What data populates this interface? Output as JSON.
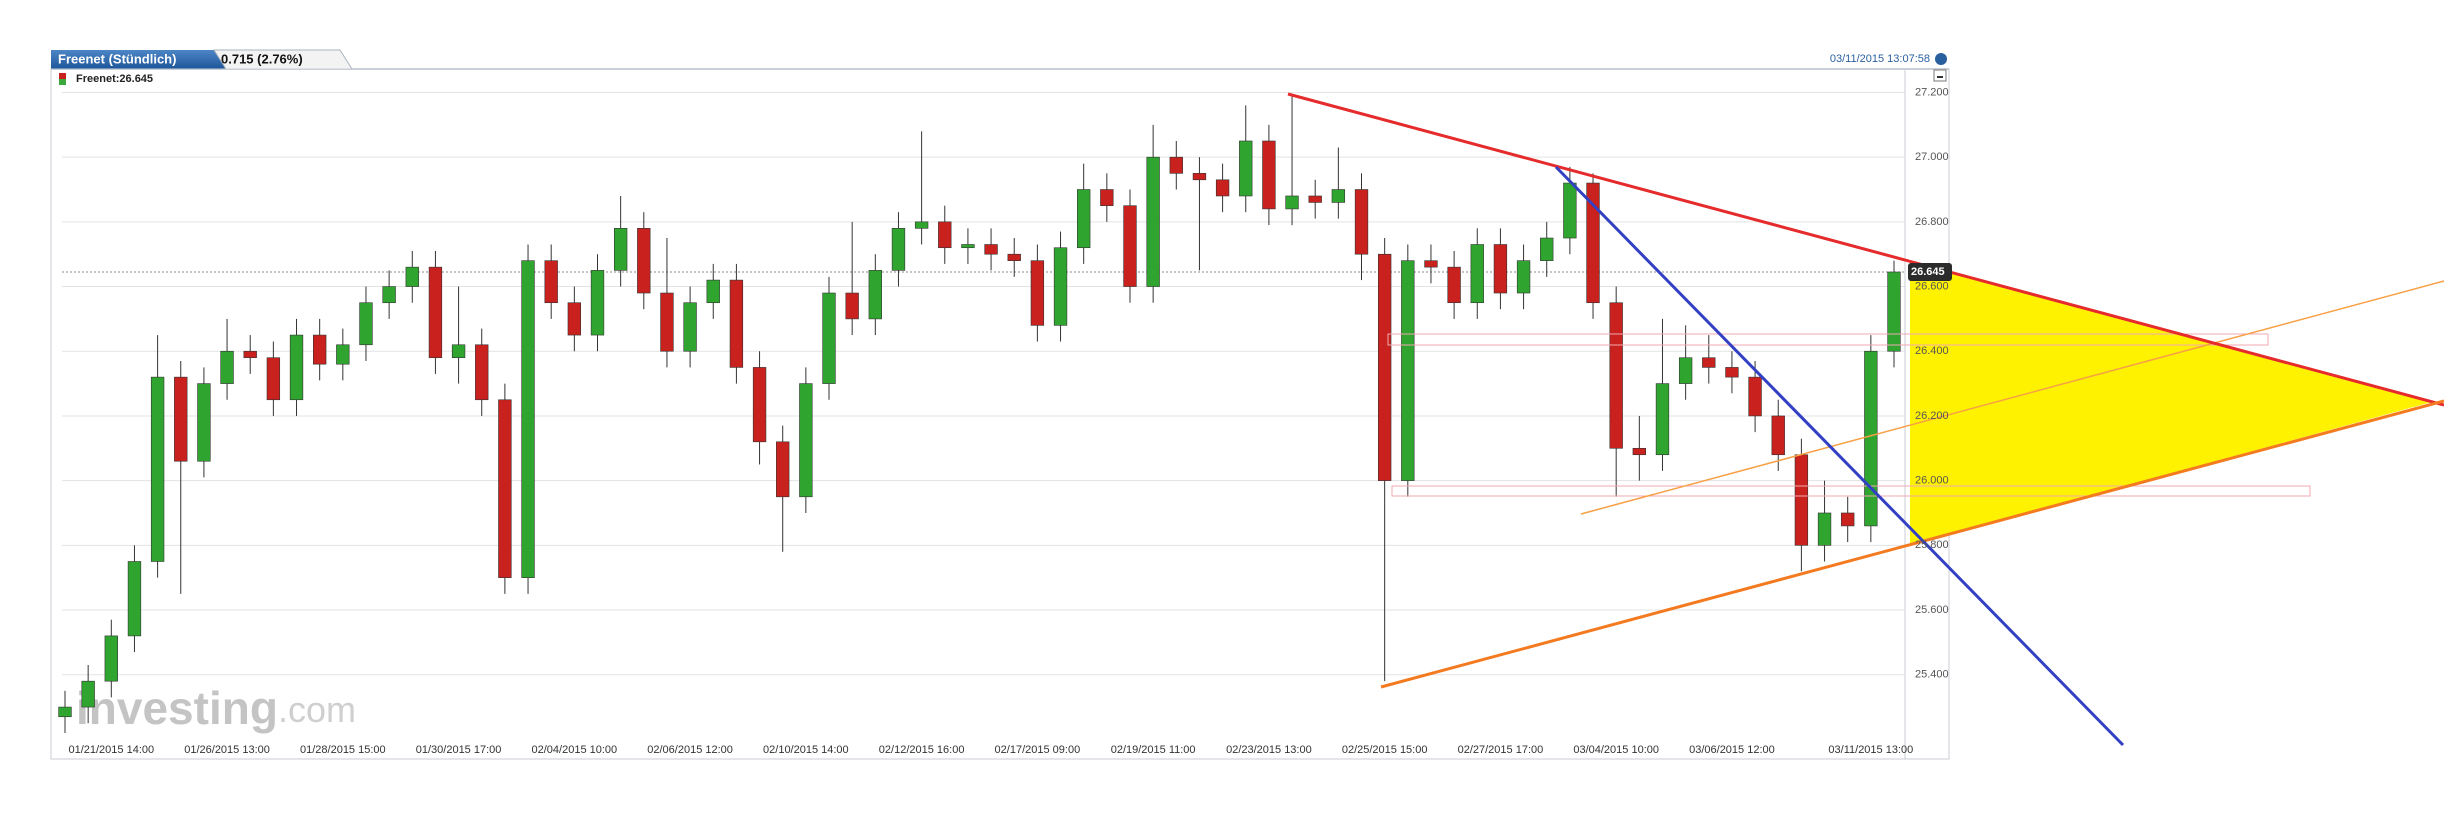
{
  "chart_data": {
    "type": "candlestick",
    "title": "Freenet (Stündlich)",
    "change": "0.715 (2.76%)",
    "timestamp": "03/11/2015 13:07:58",
    "legend": "Freenet:26.645",
    "last_price": 26.645,
    "last_price_label": "26.645",
    "watermark": [
      "investing",
      ".com"
    ],
    "up_color": "#2fa52f",
    "down_color": "#c8211e",
    "ylim": [
      25.26,
      27.22
    ],
    "yticks": [
      {
        "value": 25.4,
        "label": "25.400"
      },
      {
        "value": 25.6,
        "label": "25.600"
      },
      {
        "value": 25.8,
        "label": "25.800"
      },
      {
        "value": 26.0,
        "label": "26.000"
      },
      {
        "value": 26.2,
        "label": "26.200"
      },
      {
        "value": 26.4,
        "label": "26.400"
      },
      {
        "value": 26.6,
        "label": "26.600"
      },
      {
        "value": 26.8,
        "label": "26.800"
      },
      {
        "value": 27.0,
        "label": "27.000"
      },
      {
        "value": 27.2,
        "label": "27.200"
      }
    ],
    "grid": true,
    "categories": [
      null,
      null,
      "01/21/2015 14:00",
      null,
      null,
      null,
      null,
      "01/26/2015 13:00",
      null,
      null,
      null,
      null,
      "01/28/2015 15:00",
      null,
      null,
      null,
      null,
      "01/30/2015 17:00",
      null,
      null,
      null,
      null,
      "02/04/2015 10:00",
      null,
      null,
      null,
      null,
      "02/06/2015 12:00",
      null,
      null,
      null,
      null,
      "02/10/2015 14:00",
      null,
      null,
      null,
      null,
      "02/12/2015 16:00",
      null,
      null,
      null,
      null,
      "02/17/2015 09:00",
      null,
      null,
      null,
      null,
      "02/19/2015 11:00",
      null,
      null,
      null,
      null,
      "02/23/2015 13:00",
      null,
      null,
      null,
      null,
      "02/25/2015 15:00",
      null,
      null,
      null,
      null,
      "02/27/2015 17:00",
      null,
      null,
      null,
      null,
      "03/04/2015 10:00",
      null,
      null,
      null,
      null,
      "03/06/2015 12:00",
      null,
      null,
      null,
      null,
      null,
      "03/11/2015 13:00",
      null
    ],
    "open": [
      25.27,
      25.3,
      25.38,
      25.52,
      25.75,
      26.32,
      26.06,
      26.3,
      26.4,
      26.38,
      26.25,
      26.45,
      26.36,
      26.42,
      26.55,
      26.6,
      26.66,
      26.38,
      26.42,
      26.25,
      25.7,
      26.68,
      26.55,
      26.45,
      26.65,
      26.78,
      26.58,
      26.4,
      26.55,
      26.62,
      26.35,
      26.12,
      25.95,
      26.3,
      26.58,
      26.5,
      26.65,
      26.78,
      26.8,
      26.72,
      26.73,
      26.7,
      26.68,
      26.48,
      26.72,
      26.9,
      26.85,
      26.6,
      27.0,
      26.95,
      26.93,
      26.88,
      27.05,
      26.84,
      26.88,
      26.86,
      26.9,
      26.7,
      26.0,
      26.68,
      26.66,
      26.55,
      26.73,
      26.58,
      26.68,
      26.75,
      26.92,
      26.55,
      26.1,
      26.08,
      26.3,
      26.38,
      26.35,
      26.32,
      26.2,
      26.08,
      25.8,
      25.9,
      25.86,
      26.4
    ],
    "high": [
      25.35,
      25.43,
      25.57,
      25.8,
      26.45,
      26.37,
      26.35,
      26.5,
      26.45,
      26.43,
      26.5,
      26.5,
      26.47,
      26.6,
      26.65,
      26.71,
      26.71,
      26.6,
      26.47,
      26.3,
      26.73,
      26.73,
      26.6,
      26.7,
      26.88,
      26.83,
      26.75,
      26.6,
      26.67,
      26.67,
      26.4,
      26.17,
      26.35,
      26.63,
      26.8,
      26.7,
      26.83,
      27.08,
      26.85,
      26.78,
      26.78,
      26.75,
      26.73,
      26.77,
      26.98,
      26.95,
      26.9,
      27.1,
      27.05,
      27.0,
      26.98,
      27.16,
      27.1,
      27.19,
      26.93,
      27.03,
      26.95,
      26.75,
      26.73,
      26.73,
      26.71,
      26.78,
      26.78,
      26.73,
      26.8,
      26.97,
      26.95,
      26.6,
      26.2,
      26.5,
      26.48,
      26.45,
      26.4,
      26.37,
      26.25,
      26.13,
      26.0,
      25.95,
      26.45,
      26.68
    ],
    "low": [
      25.22,
      25.25,
      25.33,
      25.47,
      25.7,
      25.65,
      26.01,
      26.25,
      26.33,
      26.2,
      26.2,
      26.31,
      26.31,
      26.37,
      26.5,
      26.55,
      26.33,
      26.3,
      26.2,
      25.65,
      25.65,
      26.5,
      26.4,
      26.4,
      26.6,
      26.53,
      26.35,
      26.35,
      26.5,
      26.3,
      26.05,
      25.78,
      25.9,
      26.25,
      26.45,
      26.45,
      26.6,
      26.73,
      26.67,
      26.67,
      26.65,
      26.63,
      26.43,
      26.43,
      26.67,
      26.8,
      26.55,
      26.55,
      26.9,
      26.65,
      26.83,
      26.83,
      26.79,
      26.79,
      26.81,
      26.81,
      26.62,
      25.38,
      25.95,
      26.61,
      26.5,
      26.5,
      26.53,
      26.53,
      26.63,
      26.7,
      26.5,
      25.95,
      26.0,
      26.03,
      26.25,
      26.3,
      26.27,
      26.15,
      26.03,
      25.72,
      25.75,
      25.81,
      25.81,
      26.35
    ],
    "close": [
      25.3,
      25.38,
      25.52,
      25.75,
      26.32,
      26.06,
      26.3,
      26.4,
      26.38,
      26.25,
      26.45,
      26.36,
      26.42,
      26.55,
      26.6,
      26.66,
      26.38,
      26.42,
      26.25,
      25.7,
      26.68,
      26.55,
      26.45,
      26.65,
      26.78,
      26.58,
      26.4,
      26.55,
      26.62,
      26.35,
      26.12,
      25.95,
      26.3,
      26.58,
      26.5,
      26.65,
      26.78,
      26.8,
      26.72,
      26.73,
      26.7,
      26.68,
      26.48,
      26.72,
      26.9,
      26.85,
      26.6,
      27.0,
      26.95,
      26.93,
      26.88,
      27.05,
      26.84,
      26.88,
      26.86,
      26.9,
      26.7,
      26.0,
      26.68,
      26.66,
      26.55,
      26.73,
      26.58,
      26.68,
      26.75,
      26.92,
      26.55,
      26.1,
      26.08,
      26.3,
      26.38,
      26.35,
      26.32,
      26.2,
      26.08,
      25.8,
      25.9,
      25.86,
      26.4,
      26.645
    ]
  }
}
